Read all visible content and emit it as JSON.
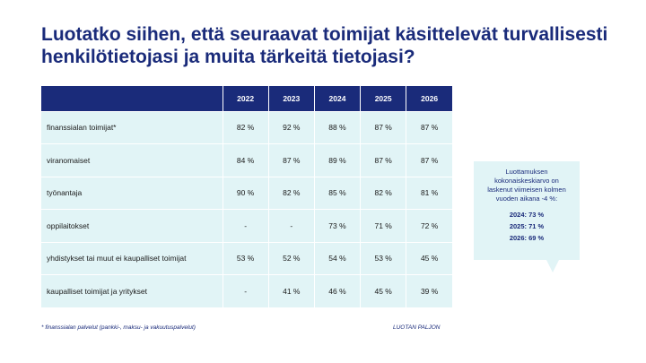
{
  "title": {
    "line1": "Luotatko siihen, että seuraavat toimijat käsittelevät turvallisesti",
    "line2": "henkilötietojasi ja muita tärkeitä tietojasi?"
  },
  "table": {
    "headers": [
      "",
      "2022",
      "2023",
      "2024",
      "2025",
      "2026"
    ],
    "rows": [
      {
        "label": "finanssialan toimijat*",
        "values": [
          "82 %",
          "92 %",
          "88 %",
          "87 %",
          "87 %"
        ]
      },
      {
        "label": "viranomaiset",
        "values": [
          "84 %",
          "87 %",
          "89 %",
          "87 %",
          "87 %"
        ]
      },
      {
        "label": "työnantaja",
        "values": [
          "90 %",
          "82 %",
          "85 %",
          "82 %",
          "81 %"
        ]
      },
      {
        "label": "oppilaitokset",
        "values": [
          "-",
          "-",
          "73 %",
          "71 %",
          "72 %"
        ]
      },
      {
        "label": "yhdistykset tai muut ei kaupalliset toimijat",
        "values": [
          "53 %",
          "52 %",
          "54 %",
          "53 %",
          "45 %"
        ]
      },
      {
        "label": "kaupalliset toimijat ja yritykset",
        "values": [
          "-",
          "41 %",
          "46 %",
          "45 %",
          "39 %"
        ]
      }
    ]
  },
  "callout": {
    "lines": [
      "Luottamuksen",
      "kokonaiskeskiarvo on",
      "laskenut viimeisen kolmen",
      "vuoden aikana -4 %:"
    ],
    "stats": [
      "2024: 73 %",
      "2025: 71 %",
      "2026: 69 %"
    ]
  },
  "footnote": "* finanssialan palvelut (pankki-, maksu- ja vakuutuspalvelut)",
  "brand": "LUOTAN PALJON",
  "colors": {
    "navy": "#1a2b7a",
    "light_cyan": "#e1f4f6"
  }
}
